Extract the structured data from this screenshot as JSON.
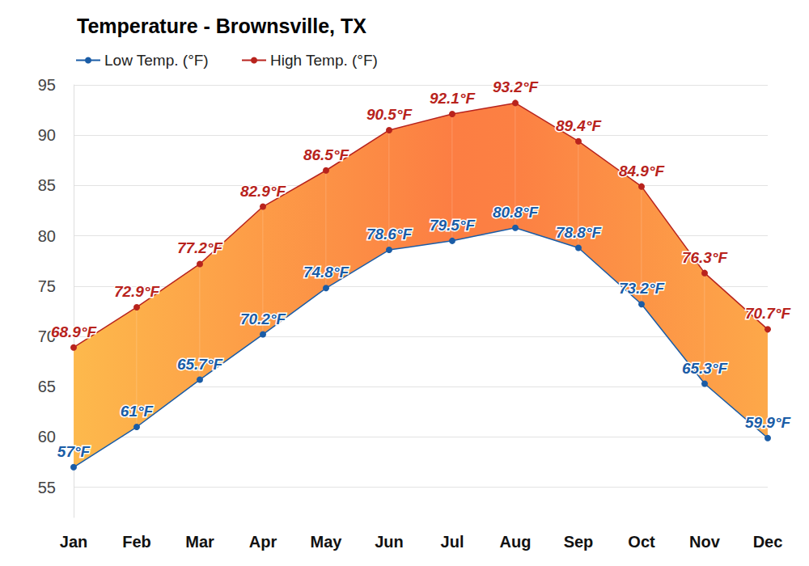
{
  "chart_data": {
    "type": "line",
    "title": "Temperature - Brownsville, TX",
    "categories": [
      "Jan",
      "Feb",
      "Mar",
      "Apr",
      "May",
      "Jun",
      "Jul",
      "Aug",
      "Sep",
      "Oct",
      "Nov",
      "Dec"
    ],
    "series": [
      {
        "name": "Low Temp. (°F)",
        "color": "#1a5ca6",
        "values": [
          57,
          61,
          65.7,
          70.2,
          74.8,
          78.6,
          79.5,
          80.8,
          78.8,
          73.2,
          65.3,
          59.9
        ],
        "value_labels": [
          "57°F",
          "61°F",
          "65.7°F",
          "70.2°F",
          "74.8°F",
          "78.6°F",
          "79.5°F",
          "80.8°F",
          "78.8°F",
          "73.2°F",
          "65.3°F",
          "59.9°F"
        ]
      },
      {
        "name": "High Temp. (°F)",
        "color": "#b8231d",
        "values": [
          68.9,
          72.9,
          77.2,
          82.9,
          86.5,
          90.5,
          92.1,
          93.2,
          89.4,
          84.9,
          76.3,
          70.7
        ],
        "value_labels": [
          "68.9°F",
          "72.9°F",
          "77.2°F",
          "82.9°F",
          "86.5°F",
          "90.5°F",
          "92.1°F",
          "93.2°F",
          "89.4°F",
          "84.9°F",
          "76.3°F",
          "70.7°F"
        ]
      }
    ],
    "ylim": [
      52,
      95
    ],
    "yticks": [
      55,
      60,
      65,
      70,
      75,
      80,
      85,
      90,
      95
    ],
    "grid": true,
    "legend": "top-left",
    "data_labels": true,
    "marker": "circle"
  }
}
